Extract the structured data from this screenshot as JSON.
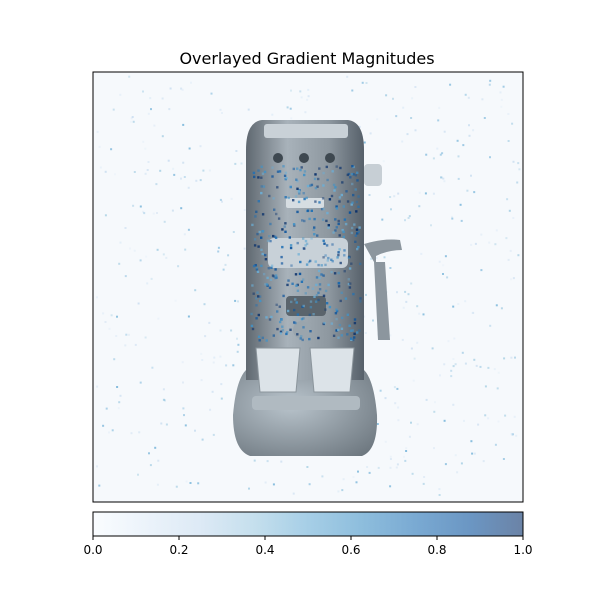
{
  "chart_data": {
    "type": "heatmap",
    "title": "Overlayed Gradient Magnitudes",
    "subject": "espresso machine",
    "axes_ticks": "hidden",
    "grid": false,
    "colormap": "Blues",
    "colormap_alpha": 0.6,
    "colorbar": {
      "orientation": "horizontal",
      "placement": "bottom",
      "range": [
        0.0,
        1.0
      ],
      "ticks": [
        {
          "value": 0.0,
          "label": "0.0"
        },
        {
          "value": 0.2,
          "label": "0.2"
        },
        {
          "value": 0.4,
          "label": "0.4"
        },
        {
          "value": 0.6,
          "label": "0.6"
        },
        {
          "value": 0.8,
          "label": "0.8"
        },
        {
          "value": 1.0,
          "label": "1.0"
        }
      ],
      "colors": [
        "#f7fbff",
        "#deebf7",
        "#c6dbef",
        "#9ecae1",
        "#6baed6",
        "#4292c6",
        "#2171b5",
        "#08519c",
        "#08306b"
      ]
    }
  }
}
